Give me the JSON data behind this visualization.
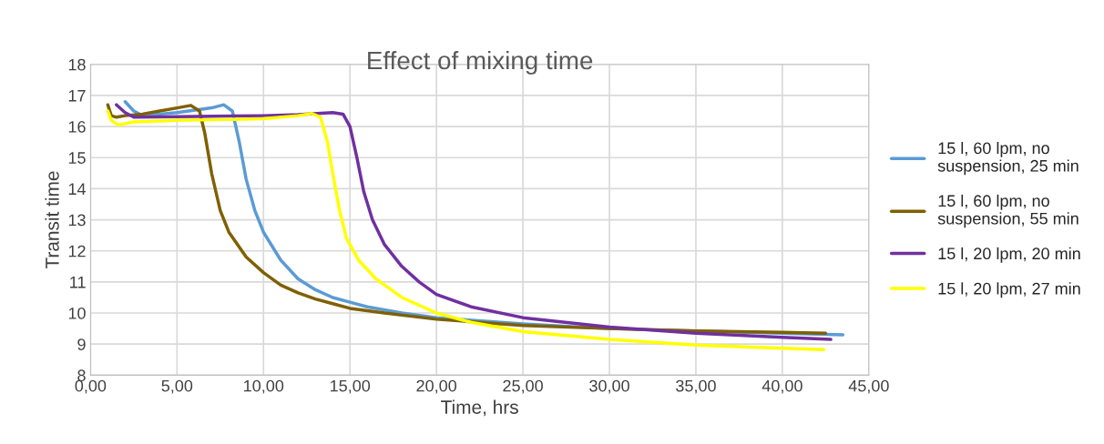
{
  "chart_data": {
    "type": "line",
    "title": "Effect of mixing time",
    "xlabel": "Time, hrs",
    "ylabel": "Transit time",
    "xlim": [
      0,
      45
    ],
    "ylim": [
      8,
      18
    ],
    "xticks": [
      {
        "value": 0,
        "label": "0,00"
      },
      {
        "value": 5,
        "label": "5,00"
      },
      {
        "value": 10,
        "label": "10,00"
      },
      {
        "value": 15,
        "label": "15,00"
      },
      {
        "value": 20,
        "label": "20,00"
      },
      {
        "value": 25,
        "label": "25,00"
      },
      {
        "value": 30,
        "label": "30,00"
      },
      {
        "value": 35,
        "label": "35,00"
      },
      {
        "value": 40,
        "label": "40,00"
      },
      {
        "value": 45,
        "label": "45,00"
      }
    ],
    "yticks": [
      8,
      9,
      10,
      11,
      12,
      13,
      14,
      15,
      16,
      17,
      18
    ],
    "grid": true,
    "legend": "right",
    "marker": "none",
    "line_style": "solid",
    "series": [
      {
        "name": "15 l, 60 lpm, no suspension, 25 min",
        "color": "#5b9bd5",
        "x": [
          2.0,
          2.5,
          3,
          5,
          7,
          7.7,
          8.2,
          8.6,
          9,
          9.5,
          10,
          11,
          12,
          13,
          14,
          15,
          16,
          18,
          20,
          25,
          30,
          35,
          40,
          43.5
        ],
        "values": [
          16.8,
          16.5,
          16.35,
          16.45,
          16.6,
          16.7,
          16.5,
          15.5,
          14.3,
          13.3,
          12.6,
          11.7,
          11.1,
          10.75,
          10.5,
          10.35,
          10.2,
          10.0,
          9.85,
          9.65,
          9.5,
          9.42,
          9.35,
          9.3
        ]
      },
      {
        "name": "15 l, 60 lpm, no suspension, 55 min",
        "color": "#7f6000",
        "x": [
          1.0,
          1.2,
          1.5,
          2,
          3,
          4,
          5,
          5.8,
          6.3,
          6.6,
          7,
          7.5,
          8,
          9,
          10,
          11,
          12,
          13,
          14,
          15,
          17,
          20,
          25,
          30,
          35,
          40,
          42.5
        ],
        "values": [
          16.7,
          16.35,
          16.3,
          16.35,
          16.4,
          16.5,
          16.6,
          16.68,
          16.5,
          15.8,
          14.5,
          13.3,
          12.6,
          11.8,
          11.3,
          10.9,
          10.65,
          10.45,
          10.3,
          10.15,
          10.0,
          9.8,
          9.6,
          9.5,
          9.42,
          9.38,
          9.35
        ]
      },
      {
        "name": "15 l, 20 lpm, 20 min",
        "color": "#7030a0",
        "x": [
          1.5,
          2.0,
          2.5,
          5,
          10,
          12,
          14,
          14.6,
          15,
          15.4,
          15.8,
          16.3,
          17,
          18,
          19,
          20,
          22,
          25,
          30,
          35,
          40,
          42.8
        ],
        "values": [
          16.7,
          16.45,
          16.3,
          16.32,
          16.35,
          16.38,
          16.45,
          16.4,
          16.0,
          15.0,
          13.9,
          13.0,
          12.2,
          11.5,
          11.0,
          10.6,
          10.2,
          9.85,
          9.55,
          9.35,
          9.22,
          9.15
        ]
      },
      {
        "name": "15 l, 20 lpm, 27 min",
        "color": "#ffff00",
        "x": [
          1.0,
          1.2,
          1.6,
          2.5,
          5,
          10,
          12,
          12.8,
          13.3,
          13.7,
          14,
          14.4,
          14.8,
          15.5,
          16.5,
          18,
          20,
          22,
          25,
          30,
          35,
          40,
          42.4
        ],
        "values": [
          16.5,
          16.2,
          16.05,
          16.15,
          16.2,
          16.25,
          16.35,
          16.42,
          16.3,
          15.5,
          14.5,
          13.3,
          12.4,
          11.7,
          11.1,
          10.5,
          10.0,
          9.7,
          9.4,
          9.15,
          8.97,
          8.87,
          8.82
        ]
      }
    ]
  }
}
